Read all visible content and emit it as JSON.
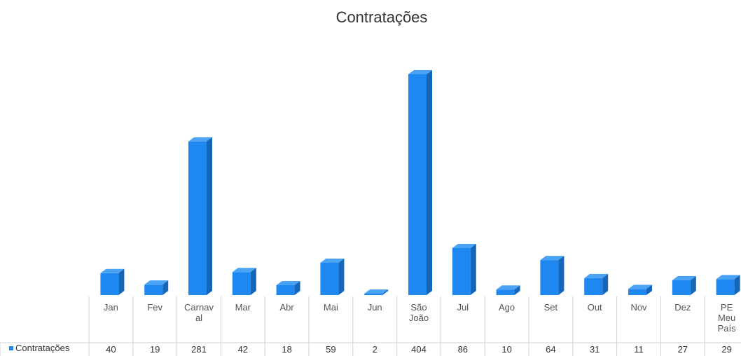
{
  "chart_data": {
    "type": "bar",
    "title": "Contratações",
    "categories": [
      "Jan",
      "Fev",
      "Carnaval",
      "Mar",
      "Abr",
      "Mai",
      "Jun",
      "São João",
      "Jul",
      "Ago",
      "Set",
      "Out",
      "Nov",
      "Dez",
      "PE Meu País"
    ],
    "category_lines": [
      [
        "Jan"
      ],
      [
        "Fev"
      ],
      [
        "Carnav",
        "al"
      ],
      [
        "Mar"
      ],
      [
        "Abr"
      ],
      [
        "Mai"
      ],
      [
        "Jun"
      ],
      [
        "São",
        "João"
      ],
      [
        "Jul"
      ],
      [
        "Ago"
      ],
      [
        "Set"
      ],
      [
        "Out"
      ],
      [
        "Nov"
      ],
      [
        "Dez"
      ],
      [
        "PE",
        "Meu",
        "País"
      ]
    ],
    "series": [
      {
        "name": "Contratações",
        "values": [
          40,
          19,
          281,
          42,
          18,
          59,
          2,
          404,
          86,
          10,
          64,
          31,
          11,
          27,
          29
        ],
        "color": "#1e88f0"
      }
    ],
    "data_table": true,
    "bar_style": "3d"
  }
}
